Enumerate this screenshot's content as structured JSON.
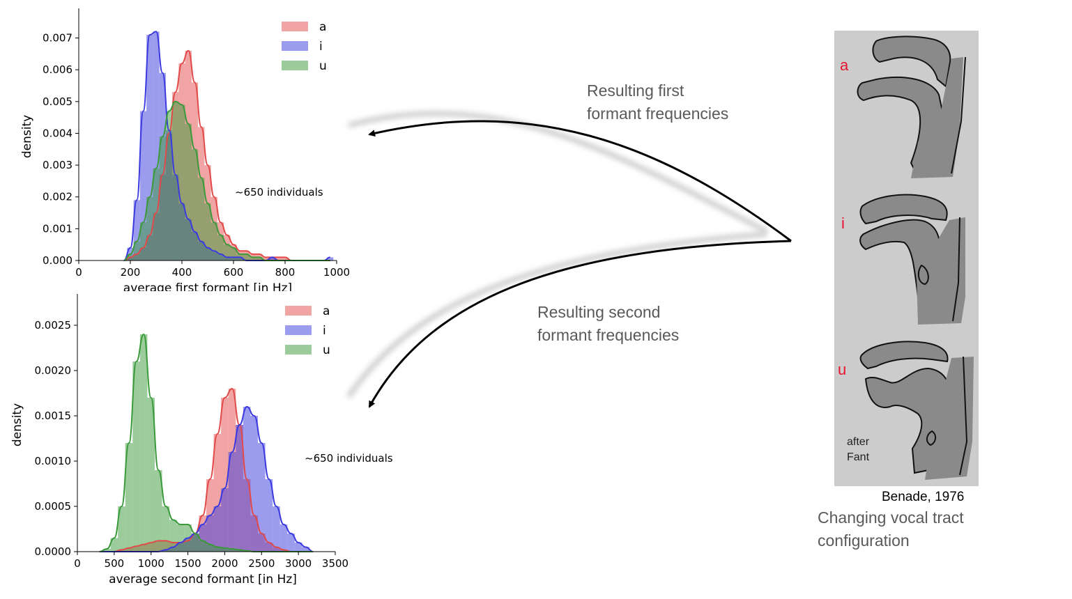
{
  "charts": {
    "f1": {
      "type": "histogram",
      "xlabel": "average first formant [in Hz]",
      "ylabel": "density",
      "annotation": "~650 individuals",
      "xlim": [
        0,
        1000
      ],
      "ylim": [
        0,
        0.0078
      ],
      "xticks": [
        "0",
        "200",
        "400",
        "600",
        "800",
        "1000"
      ],
      "yticks": [
        "0.000",
        "0.001",
        "0.002",
        "0.003",
        "0.004",
        "0.005",
        "0.006",
        "0.007"
      ],
      "legend": [
        "a",
        "i",
        "u"
      ]
    },
    "f2": {
      "type": "histogram",
      "xlabel": "average second formant [in Hz]",
      "ylabel": "density",
      "annotation": "~650 individuals",
      "xlim": [
        0,
        3500
      ],
      "ylim": [
        0,
        0.0028
      ],
      "xticks": [
        "0",
        "500",
        "1000",
        "1500",
        "2000",
        "2500",
        "3000",
        "3500"
      ],
      "yticks": [
        "0.0000",
        "0.0005",
        "0.0010",
        "0.0015",
        "0.0020",
        "0.0025"
      ],
      "legend": [
        "a",
        "i",
        "u"
      ]
    }
  },
  "chart_data": [
    {
      "type": "bar",
      "series": [
        {
          "name": "a",
          "color": "#e24a4a",
          "x": [
            175,
            200,
            225,
            250,
            275,
            300,
            325,
            350,
            375,
            400,
            425,
            450,
            475,
            500,
            525,
            550,
            575,
            600,
            625,
            650,
            675,
            700,
            725,
            750,
            775,
            800,
            825,
            850,
            875,
            900,
            925,
            950,
            975
          ],
          "values": [
            0,
            0.0001,
            0.0002,
            0.0004,
            0.0008,
            0.0015,
            0.0027,
            0.004,
            0.0053,
            0.0062,
            0.0066,
            0.0056,
            0.0042,
            0.003,
            0.002,
            0.0012,
            0.0008,
            0.0005,
            0.0003,
            0.0003,
            0.0002,
            0.0002,
            0.0001,
            0.0001,
            0.0001,
            0.0001,
            0,
            0,
            0,
            0,
            0,
            0,
            0
          ]
        },
        {
          "name": "i",
          "color": "#3a3ae0",
          "x": [
            175,
            200,
            225,
            250,
            275,
            300,
            325,
            350,
            375,
            400,
            425,
            450,
            475,
            500,
            525,
            550,
            575,
            600,
            625,
            650,
            675,
            700,
            725,
            750,
            775,
            800,
            825,
            850,
            875,
            900,
            925,
            950,
            975
          ],
          "values": [
            0,
            0.0004,
            0.0019,
            0.0047,
            0.0071,
            0.0072,
            0.0059,
            0.0041,
            0.0027,
            0.0018,
            0.0013,
            0.0009,
            0.0006,
            0.0004,
            0.0003,
            0.0002,
            0.0001,
            0.0001,
            0.0001,
            0,
            0,
            0,
            0,
            0.0001,
            0,
            0,
            0,
            0,
            0,
            0,
            0,
            0,
            0.0001
          ]
        },
        {
          "name": "u",
          "color": "#3a9a3a",
          "x": [
            175,
            200,
            225,
            250,
            275,
            300,
            325,
            350,
            375,
            400,
            425,
            450,
            475,
            500,
            525,
            550,
            575,
            600,
            625,
            650,
            675,
            700,
            725,
            750,
            775,
            800,
            825,
            850,
            875,
            900,
            925,
            950,
            975
          ],
          "values": [
            0,
            0.0002,
            0.0006,
            0.0012,
            0.002,
            0.0029,
            0.0039,
            0.0047,
            0.005,
            0.0049,
            0.0043,
            0.0035,
            0.0026,
            0.0018,
            0.0012,
            0.0008,
            0.0005,
            0.0004,
            0.0002,
            0.0002,
            0.0001,
            0.0001,
            0,
            0,
            0,
            0,
            0,
            0,
            0,
            0,
            0,
            0,
            0
          ]
        }
      ],
      "xlabel": "average first formant [in Hz]",
      "ylabel": "density",
      "xlim": [
        0,
        1000
      ],
      "ylim": [
        0,
        0.0078
      ],
      "legend_position": "top-right",
      "grid": false
    },
    {
      "type": "bar",
      "series": [
        {
          "name": "a",
          "color": "#e24a4a",
          "x": [
            300,
            400,
            500,
            600,
            700,
            800,
            900,
            1000,
            1100,
            1200,
            1300,
            1400,
            1500,
            1600,
            1700,
            1800,
            1900,
            2000,
            2100,
            2200,
            2300,
            2400,
            2500,
            2600,
            2700,
            2800,
            2900,
            3000,
            3100,
            3200
          ],
          "values": [
            0,
            0,
            0,
            2e-05,
            4e-05,
            6e-05,
            8e-05,
            0.0001,
            0.00012,
            0.00012,
            0.0001,
            0.0001,
            0.00012,
            0.0002,
            0.0004,
            0.0008,
            0.0013,
            0.0017,
            0.0018,
            0.0014,
            0.0008,
            0.0004,
            0.0002,
            0.0001,
            5e-05,
            2e-05,
            0,
            0,
            0,
            0
          ]
        },
        {
          "name": "i",
          "color": "#3a3ae0",
          "x": [
            300,
            400,
            500,
            600,
            700,
            800,
            900,
            1000,
            1100,
            1200,
            1300,
            1400,
            1500,
            1600,
            1700,
            1800,
            1900,
            2000,
            2100,
            2200,
            2300,
            2400,
            2500,
            2600,
            2700,
            2800,
            2900,
            3000,
            3100,
            3200
          ],
          "values": [
            0,
            0,
            0,
            0,
            0,
            0,
            0,
            0,
            0,
            2e-05,
            5e-05,
            0.0001,
            0.00015,
            0.0002,
            0.0003,
            0.0004,
            0.0005,
            0.0007,
            0.0011,
            0.0014,
            0.0016,
            0.0015,
            0.0012,
            0.0008,
            0.0005,
            0.0003,
            0.0002,
            0.0001,
            5e-05,
            0
          ]
        },
        {
          "name": "u",
          "color": "#3a9a3a",
          "x": [
            300,
            400,
            500,
            600,
            700,
            800,
            900,
            1000,
            1100,
            1200,
            1300,
            1400,
            1500,
            1600,
            1700,
            1800,
            1900,
            2000,
            2100,
            2200,
            2300,
            2400,
            2500,
            2600,
            2700,
            2800,
            2900,
            3000,
            3100,
            3200
          ],
          "values": [
            0,
            3e-05,
            0.00015,
            0.0005,
            0.0012,
            0.0021,
            0.0024,
            0.0017,
            0.0009,
            0.0005,
            0.00035,
            0.0003,
            0.0003,
            0.0002,
            0.00012,
            8e-05,
            5e-05,
            4e-05,
            3e-05,
            2e-05,
            1e-05,
            0,
            0,
            0,
            0,
            0,
            0,
            0,
            0,
            0
          ]
        }
      ],
      "xlabel": "average second formant [in Hz]",
      "ylabel": "density",
      "xlim": [
        0,
        3500
      ],
      "ylim": [
        0,
        0.0028
      ],
      "legend_position": "top-right",
      "grid": false
    }
  ],
  "captions": {
    "first_line1": "Resulting first",
    "first_line2": "formant frequencies",
    "second_line1": "Resulting second",
    "second_line2": "formant frequencies"
  },
  "vocal_tract": {
    "labels": [
      "a",
      "i",
      "u"
    ],
    "after_line1": "after",
    "after_line2": "Fant",
    "source": "Benade, 1976",
    "caption_line1": "Changing vocal tract",
    "caption_line2": "configuration",
    "label_color": "#e8122d",
    "panel_color": "#cccccc"
  }
}
